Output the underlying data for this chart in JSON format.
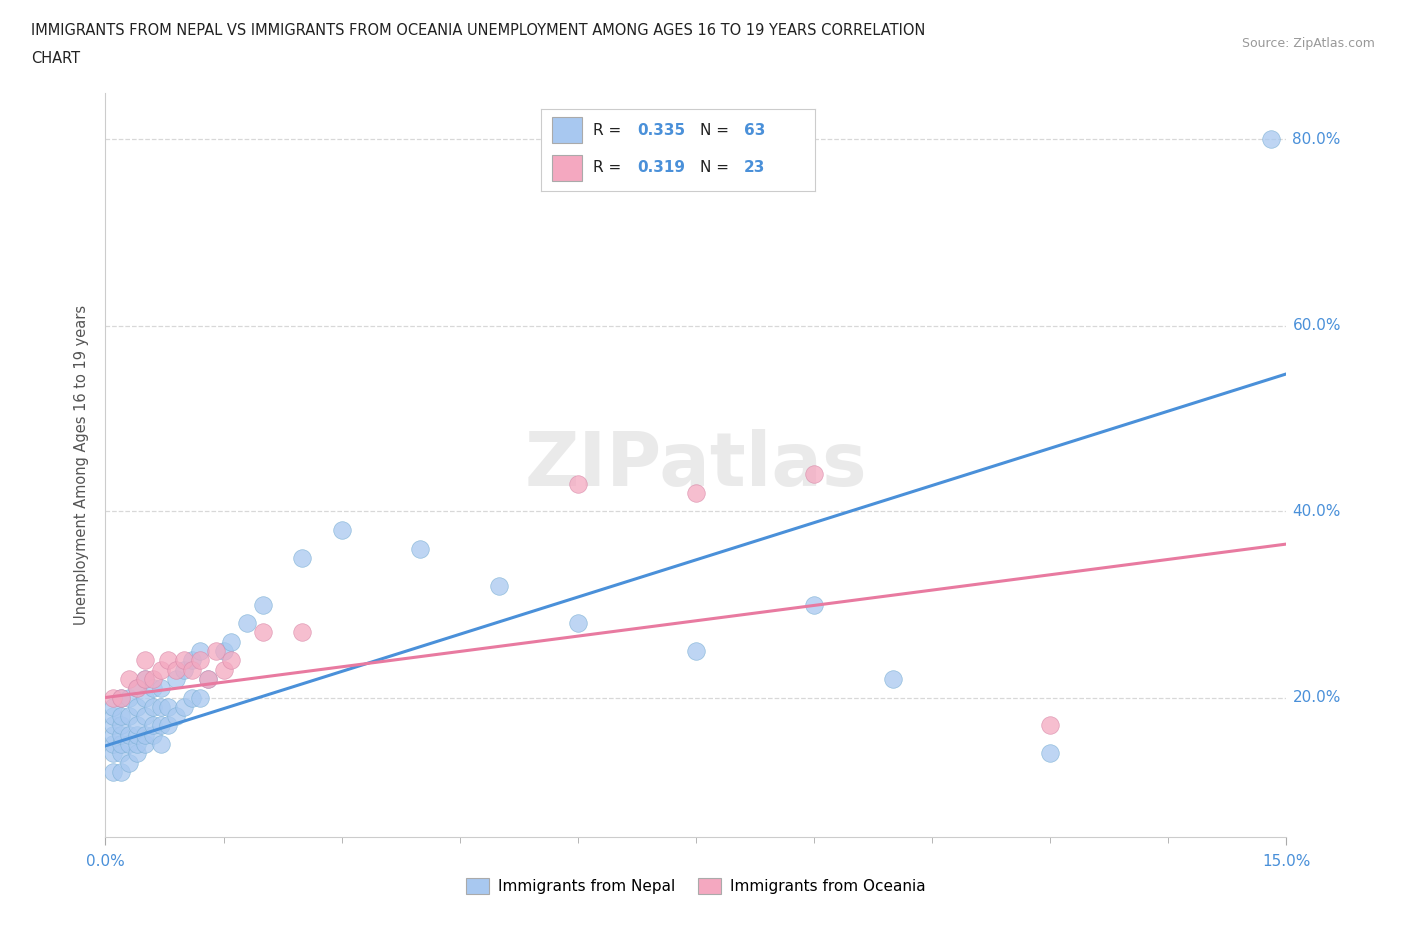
{
  "title_line1": "IMMIGRANTS FROM NEPAL VS IMMIGRANTS FROM OCEANIA UNEMPLOYMENT AMONG AGES 16 TO 19 YEARS CORRELATION",
  "title_line2": "CHART",
  "source": "Source: ZipAtlas.com",
  "ylabel": "Unemployment Among Ages 16 to 19 years",
  "xlim": [
    0.0,
    0.15
  ],
  "ylim": [
    0.05,
    0.85
  ],
  "ytick_labels": [
    "20.0%",
    "40.0%",
    "60.0%",
    "80.0%"
  ],
  "yticks": [
    0.2,
    0.4,
    0.6,
    0.8
  ],
  "nepal_color": "#a8c8f0",
  "oceania_color": "#f4a8c0",
  "nepal_line_color": "#4a90d9",
  "oceania_line_color": "#e87aa0",
  "nepal_R": 0.335,
  "nepal_N": 63,
  "oceania_R": 0.319,
  "oceania_N": 23,
  "legend_label_nepal": "Immigrants from Nepal",
  "legend_label_oceania": "Immigrants from Oceania",
  "watermark": "ZIPatlas",
  "nepal_x": [
    0.001,
    0.001,
    0.001,
    0.001,
    0.001,
    0.001,
    0.001,
    0.002,
    0.002,
    0.002,
    0.002,
    0.002,
    0.002,
    0.002,
    0.003,
    0.003,
    0.003,
    0.003,
    0.003,
    0.004,
    0.004,
    0.004,
    0.004,
    0.004,
    0.004,
    0.005,
    0.005,
    0.005,
    0.005,
    0.005,
    0.006,
    0.006,
    0.006,
    0.006,
    0.007,
    0.007,
    0.007,
    0.007,
    0.008,
    0.008,
    0.009,
    0.009,
    0.01,
    0.01,
    0.011,
    0.011,
    0.012,
    0.012,
    0.013,
    0.015,
    0.016,
    0.018,
    0.02,
    0.025,
    0.03,
    0.04,
    0.05,
    0.06,
    0.075,
    0.09,
    0.1,
    0.12,
    0.148
  ],
  "nepal_y": [
    0.12,
    0.14,
    0.15,
    0.16,
    0.17,
    0.18,
    0.19,
    0.12,
    0.14,
    0.15,
    0.16,
    0.17,
    0.18,
    0.2,
    0.13,
    0.15,
    0.16,
    0.18,
    0.2,
    0.14,
    0.15,
    0.16,
    0.17,
    0.19,
    0.21,
    0.15,
    0.16,
    0.18,
    0.2,
    0.22,
    0.16,
    0.17,
    0.19,
    0.21,
    0.15,
    0.17,
    0.19,
    0.21,
    0.17,
    0.19,
    0.18,
    0.22,
    0.19,
    0.23,
    0.2,
    0.24,
    0.2,
    0.25,
    0.22,
    0.25,
    0.26,
    0.28,
    0.3,
    0.35,
    0.38,
    0.36,
    0.32,
    0.28,
    0.25,
    0.3,
    0.22,
    0.14,
    0.8
  ],
  "oceania_x": [
    0.001,
    0.002,
    0.003,
    0.004,
    0.005,
    0.005,
    0.006,
    0.007,
    0.008,
    0.009,
    0.01,
    0.011,
    0.012,
    0.013,
    0.014,
    0.015,
    0.016,
    0.02,
    0.025,
    0.06,
    0.075,
    0.09,
    0.12
  ],
  "oceania_y": [
    0.2,
    0.2,
    0.22,
    0.21,
    0.22,
    0.24,
    0.22,
    0.23,
    0.24,
    0.23,
    0.24,
    0.23,
    0.24,
    0.22,
    0.25,
    0.23,
    0.24,
    0.27,
    0.27,
    0.43,
    0.42,
    0.44,
    0.17
  ],
  "nepal_trend": [
    0.148,
    0.548
  ],
  "oceania_trend": [
    0.2,
    0.365
  ],
  "background_color": "#ffffff",
  "grid_color": "#d8d8d8"
}
